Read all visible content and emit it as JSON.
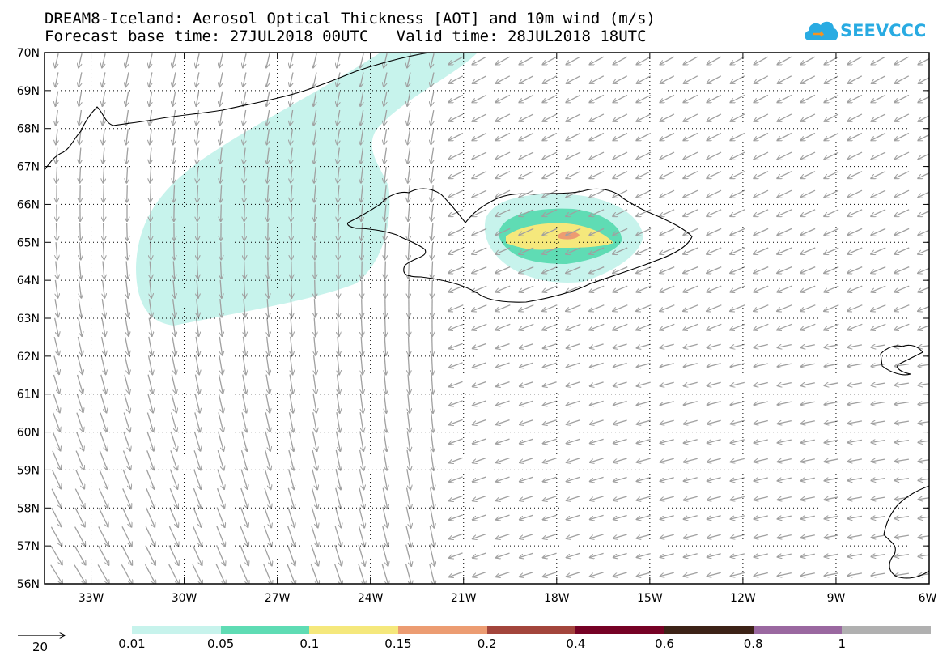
{
  "title": {
    "line1": "DREAM8-Iceland: Aerosol Optical Thickness [AOT] and 10m wind (m/s)",
    "line2": "Forecast base time: 27JUL2018 00UTC   Valid time: 28JUL2018 18UTC"
  },
  "logo": {
    "text": "SEEVCCC",
    "icon": "cloud-icon",
    "color": "#29abe2"
  },
  "map": {
    "lat_range": [
      56,
      70
    ],
    "lon_range": [
      -34.5,
      -6
    ],
    "lat_labels": [
      "56N",
      "57N",
      "58N",
      "59N",
      "60N",
      "61N",
      "62N",
      "63N",
      "64N",
      "65N",
      "66N",
      "67N",
      "68N",
      "69N",
      "70N"
    ],
    "lon_labels": [
      "33W",
      "30W",
      "27W",
      "24W",
      "21W",
      "18W",
      "15W",
      "12W",
      "9W",
      "6W"
    ],
    "gridlines": "dotted",
    "wind_arrow_color": "#a0a0a0",
    "coastline_color": "#000000"
  },
  "wind_reference": {
    "label": "20"
  },
  "colorbar": {
    "ticks": [
      "0.01",
      "0.05",
      "0.1",
      "0.15",
      "0.2",
      "0.4",
      "0.6",
      "0.8",
      "1"
    ],
    "colors": [
      "#c7f3ec",
      "#5fdcb4",
      "#f5e87c",
      "#ec9c72",
      "#a3453c",
      "#760225",
      "#3d2317",
      "#9a68a0",
      "#b0b0b0"
    ]
  },
  "aot_regions": [
    {
      "level": "0.01",
      "color": "#c7f3ec",
      "area": "west-plume"
    },
    {
      "level": "0.01",
      "color": "#c7f3ec",
      "area": "south-iceland"
    },
    {
      "level": "0.05",
      "color": "#5fdcb4",
      "area": "south-iceland"
    },
    {
      "level": "0.1",
      "color": "#f5e87c",
      "area": "south-iceland"
    },
    {
      "level": "0.15",
      "color": "#ec9c72",
      "area": "south-iceland-core"
    }
  ]
}
